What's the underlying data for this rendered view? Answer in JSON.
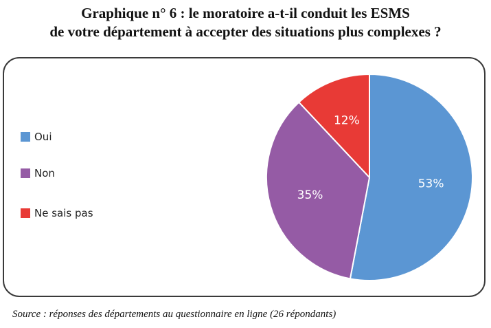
{
  "title_line1": "Graphique n° 6 : le moratoire a-t-il conduit les ESMS",
  "title_line2": "de votre département à accepter des situations plus complexes ?",
  "source": "Source : réponses des départements au questionnaire en ligne (26 répondants)",
  "chart_data": {
    "type": "pie",
    "title": "Graphique n° 6 : le moratoire a-t-il conduit les ESMS de votre département à accepter des situations plus complexes ?",
    "categories": [
      "Oui",
      "Non",
      "Ne sais pas"
    ],
    "values": [
      53,
      35,
      12
    ],
    "labels": [
      "53%",
      "35%",
      "12%"
    ],
    "colors": [
      "#5b96d3",
      "#955ba5",
      "#e83a36"
    ],
    "legend_position": "left",
    "start_angle": "12 o'clock",
    "direction": "clockwise"
  }
}
